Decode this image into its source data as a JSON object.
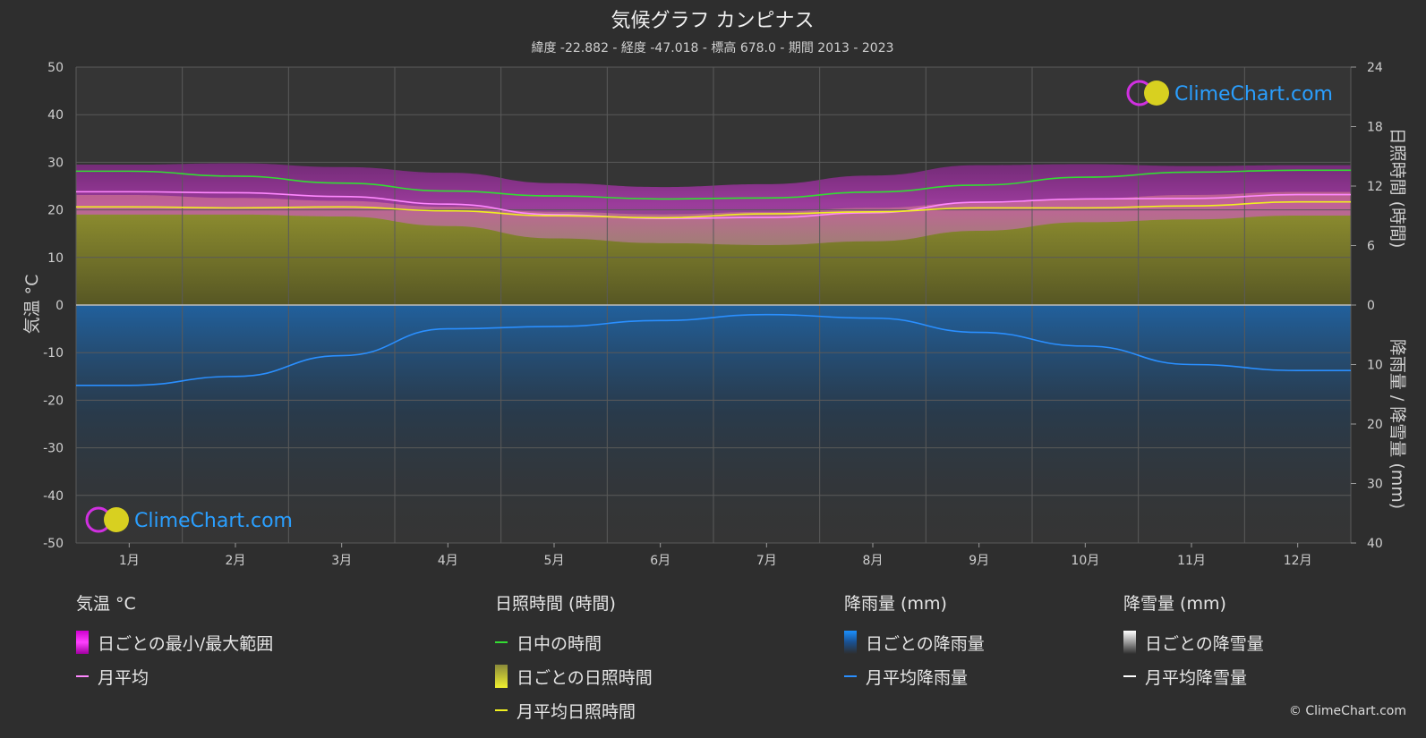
{
  "title": "気候グラフ カンピナス",
  "subtitle": "緯度 -22.882 - 経度 -47.018 - 標高 678.0 - 期間 2013 - 2023",
  "watermark": "ClimeChart.com",
  "copyright": "© ClimeChart.com",
  "colors": {
    "background": "#2e2e2e",
    "plot_bg": "#353535",
    "temp_range": "#e020e0",
    "temp_avg": "#ff88ff",
    "daylight": "#33dd33",
    "sunshine_fill": "#a8a830",
    "sunshine_avg": "#f0f020",
    "rain": "#1a7fd8",
    "rain_avg": "#2a8fff",
    "snow_avg": "#ffffff",
    "logo_blue": "#2a9fff"
  },
  "legend": {
    "temp": {
      "header": "気温 °C",
      "range": "日ごとの最小/最大範囲",
      "avg": "月平均"
    },
    "sun": {
      "header": "日照時間 (時間)",
      "daylight": "日中の時間",
      "daily": "日ごとの日照時間",
      "avg": "月平均日照時間"
    },
    "rain": {
      "header": "降雨量 (mm)",
      "daily": "日ごとの降雨量",
      "avg": "月平均降雨量"
    },
    "snow": {
      "header": "降雪量 (mm)",
      "daily": "日ごとの降雪量",
      "avg": "月平均降雪量"
    }
  },
  "chart_data": {
    "type": "line",
    "categories": [
      "1月",
      "2月",
      "3月",
      "4月",
      "5月",
      "6月",
      "7月",
      "8月",
      "9月",
      "10月",
      "11月",
      "12月"
    ],
    "left_axis": {
      "label": "気温 °C",
      "ylim": [
        -50,
        50
      ],
      "ticks": [
        50,
        40,
        30,
        20,
        10,
        0,
        -10,
        -20,
        -30,
        -40,
        -50
      ]
    },
    "right_axis_top": {
      "label": "日照時間 (時間)",
      "ylim": [
        0,
        24
      ],
      "ticks": [
        24,
        18,
        12,
        6,
        0
      ]
    },
    "right_axis_bottom": {
      "label": "降雨量 / 降雪量 (mm)",
      "ylim": [
        0,
        40
      ],
      "ticks": [
        0,
        10,
        20,
        30,
        40
      ]
    },
    "grid": true,
    "series": [
      {
        "name": "月平均",
        "axis": "temp",
        "values": [
          23.8,
          23.6,
          22.8,
          21.2,
          19.0,
          18.2,
          18.4,
          19.4,
          21.6,
          22.3,
          22.4,
          23.2
        ]
      },
      {
        "name": "日中の時間",
        "axis": "sun",
        "values": [
          13.5,
          13.0,
          12.3,
          11.5,
          11.0,
          10.7,
          10.8,
          11.4,
          12.1,
          12.9,
          13.4,
          13.6
        ]
      },
      {
        "name": "月平均日照時間",
        "axis": "sun",
        "values": [
          9.9,
          9.8,
          9.9,
          9.5,
          9.0,
          8.8,
          9.2,
          9.4,
          9.8,
          9.8,
          10.0,
          10.4
        ]
      },
      {
        "name": "月平均降雨量",
        "axis": "rain",
        "values": [
          13.5,
          12.0,
          8.5,
          4.0,
          3.6,
          2.6,
          1.6,
          2.2,
          4.6,
          6.9,
          10.0,
          11.0
        ]
      },
      {
        "name": "月平均降雪量",
        "axis": "rain",
        "values": [
          0,
          0,
          0,
          0,
          0,
          0,
          0,
          0,
          0,
          0,
          0,
          0
        ]
      }
    ],
    "temp_range": {
      "min": [
        19.0,
        19.0,
        18.6,
        16.6,
        14.0,
        13.0,
        12.6,
        13.4,
        15.6,
        17.4,
        18.0,
        18.8
      ],
      "max": [
        29.5,
        29.8,
        29.0,
        27.8,
        25.6,
        24.8,
        25.4,
        27.2,
        29.4,
        29.6,
        29.2,
        29.4
      ]
    }
  }
}
